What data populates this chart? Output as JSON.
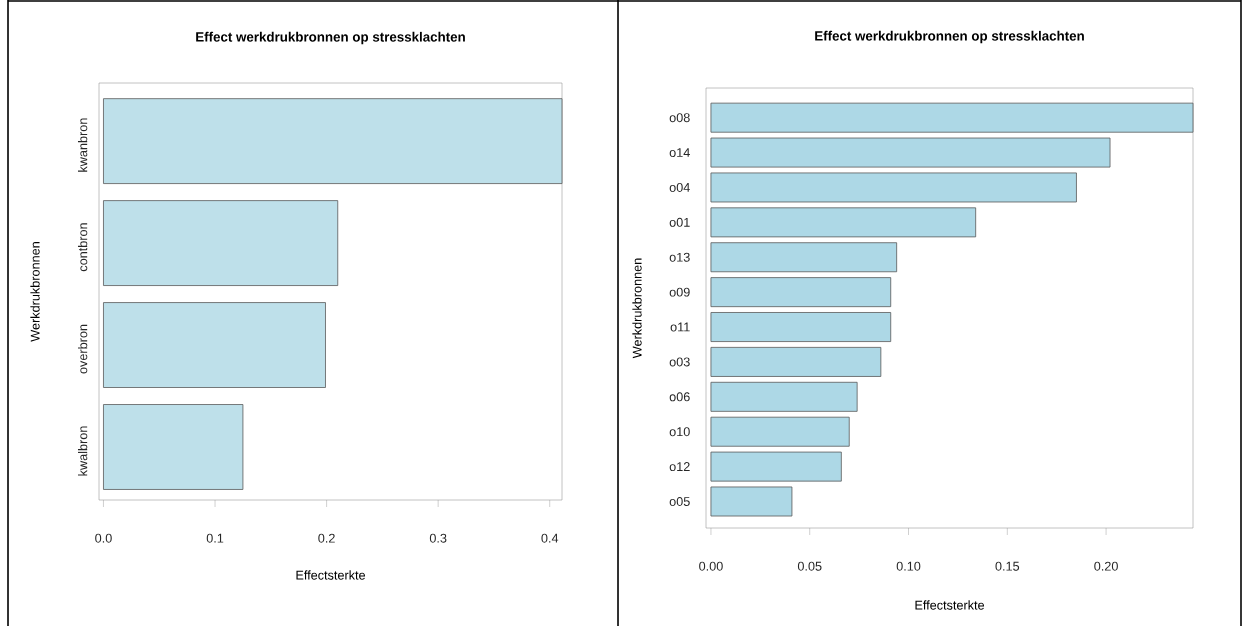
{
  "chart_data": [
    {
      "type": "bar",
      "orientation": "horizontal",
      "title": "Effect werkdrukbronnen op stressklachten",
      "xlabel": "Effectsterkte",
      "ylabel": "Werkdrukbronnen",
      "categories": [
        "kwanbron",
        "contbron",
        "overbron",
        "kwalbron"
      ],
      "values": [
        0.411,
        0.21,
        0.199,
        0.125
      ],
      "color": "#bee0ea",
      "xlim": [
        -0.004,
        0.411
      ],
      "xticks": [
        {
          "value": 0,
          "label": "0.0"
        },
        {
          "value": 0.1,
          "label": "0.1"
        },
        {
          "value": 0.2,
          "label": "0.2"
        },
        {
          "value": 0.3,
          "label": "0.3"
        },
        {
          "value": 0.4,
          "label": "0.4"
        }
      ]
    },
    {
      "type": "bar",
      "orientation": "horizontal",
      "title": "Effect werkdrukbronnen op stressklachten",
      "xlabel": "Effectsterkte",
      "ylabel": "Werkdrukbronnen",
      "categories": [
        "o08",
        "o14",
        "o04",
        "o01",
        "o13",
        "o09",
        "o11",
        "o03",
        "o06",
        "o10",
        "o12",
        "o05"
      ],
      "values": [
        0.244,
        0.202,
        0.185,
        0.134,
        0.094,
        0.091,
        0.091,
        0.086,
        0.074,
        0.07,
        0.066,
        0.041
      ],
      "color": "#add8e6",
      "xlim": [
        -0.0025,
        0.244
      ],
      "xticks": [
        {
          "value": 0,
          "label": "0.00"
        },
        {
          "value": 0.05,
          "label": "0.05"
        },
        {
          "value": 0.1,
          "label": "0.10"
        },
        {
          "value": 0.15,
          "label": "0.15"
        },
        {
          "value": 0.2,
          "label": "0.20"
        }
      ]
    }
  ]
}
